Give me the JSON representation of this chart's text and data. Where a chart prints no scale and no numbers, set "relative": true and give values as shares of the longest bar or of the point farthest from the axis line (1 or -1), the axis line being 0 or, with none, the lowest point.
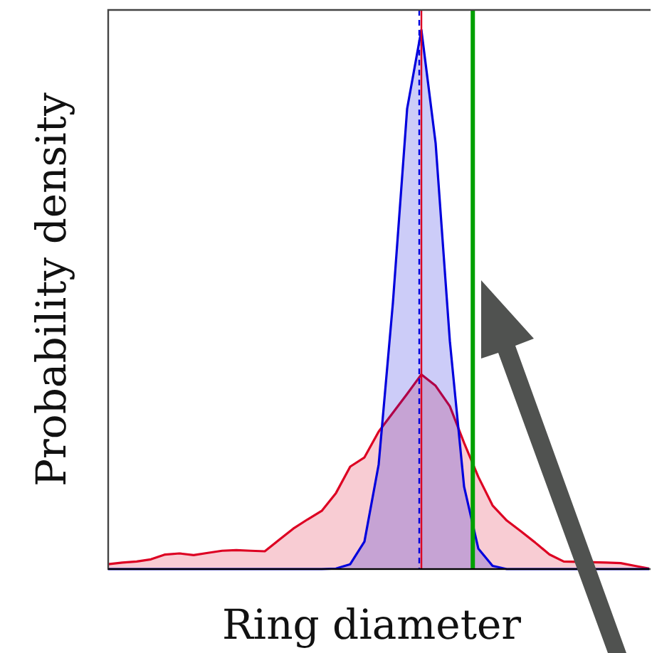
{
  "chart_data": {
    "type": "area",
    "relative": true,
    "xlabel": "Ring diameter",
    "ylabel": "Probability density",
    "categories": [
      null,
      null,
      null,
      null,
      null,
      null,
      null,
      null,
      null,
      null,
      null,
      null,
      null,
      null,
      null,
      null,
      null,
      null,
      null,
      null,
      null,
      null,
      null,
      null,
      null,
      null,
      null,
      null,
      null,
      null,
      null,
      null,
      null,
      null,
      null,
      null,
      null,
      null,
      null
    ],
    "series": [
      {
        "color": "#dd0022",
        "values": [
          0.009,
          0.012,
          0.014,
          0.018,
          0.027,
          0.029,
          0.026,
          0.03,
          0.034,
          0.035,
          0.034,
          0.033,
          0.054,
          0.075,
          0.092,
          0.108,
          0.141,
          0.19,
          0.207,
          0.255,
          0.29,
          0.325,
          0.361,
          0.34,
          0.302,
          0.234,
          0.171,
          0.118,
          0.09,
          0.07,
          0.049,
          0.027,
          0.014,
          null,
          null,
          0.012,
          0.011,
          0.006,
          0.001
        ]
      },
      {
        "color": "#0000dd",
        "values": [
          0,
          0,
          0,
          0,
          0,
          0,
          0,
          0,
          0,
          0,
          0,
          0,
          0,
          0,
          0,
          0,
          0.001,
          0.009,
          0.051,
          0.194,
          0.494,
          0.854,
          1,
          0.79,
          0.423,
          0.153,
          0.038,
          0.006,
          0,
          0,
          0,
          0,
          0,
          null,
          null,
          0,
          0,
          0,
          0
        ]
      }
    ]
  }
}
